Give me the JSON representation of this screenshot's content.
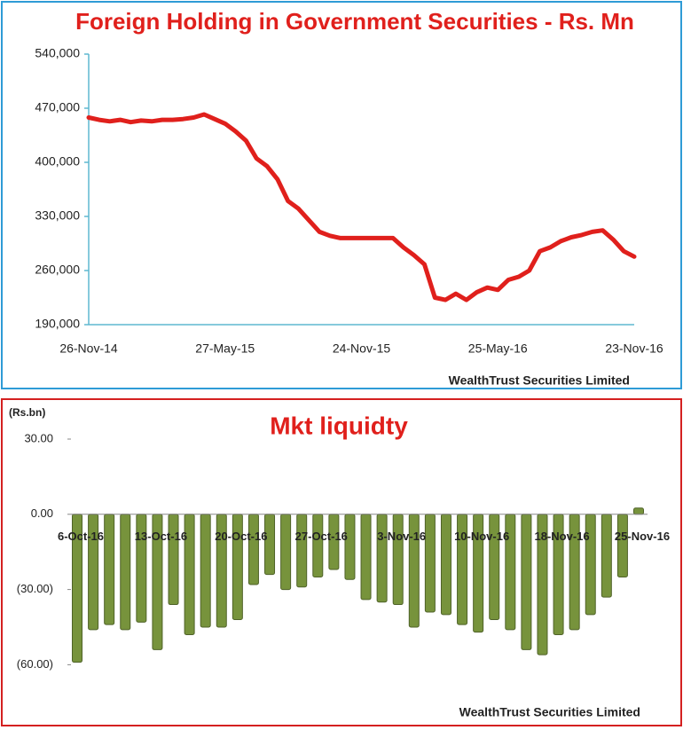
{
  "chart_data": [
    {
      "type": "line",
      "title": "Foreign Holding in Government Securities - Rs. Mn",
      "source": "WealthTrust Securities Limited",
      "categories": [
        "26-Nov-14",
        null,
        null,
        null,
        null,
        null,
        null,
        null,
        null,
        null,
        null,
        null,
        null,
        "27-May-15",
        null,
        null,
        null,
        null,
        null,
        null,
        null,
        null,
        null,
        null,
        null,
        null,
        "24-Nov-15",
        null,
        null,
        null,
        null,
        null,
        null,
        null,
        null,
        null,
        null,
        null,
        null,
        "25-May-16",
        null,
        null,
        null,
        null,
        null,
        null,
        null,
        null,
        null,
        null,
        null,
        null,
        "23-Nov-16"
      ],
      "series": [
        {
          "name": "Foreign Holding",
          "color": "#e0201c",
          "values": [
            458000,
            455000,
            453000,
            455000,
            452000,
            454000,
            453000,
            455000,
            455000,
            456000,
            458000,
            462000,
            456000,
            450000,
            440000,
            428000,
            405000,
            395000,
            378000,
            350000,
            340000,
            325000,
            310000,
            305000,
            302000,
            302000,
            302000,
            302000,
            302000,
            302000,
            290000,
            280000,
            268000,
            225000,
            222000,
            230000,
            222000,
            232000,
            238000,
            235000,
            248000,
            252000,
            260000,
            285000,
            290000,
            298000,
            303000,
            306000,
            310000,
            312000,
            300000,
            285000,
            278000
          ]
        }
      ],
      "ylim": [
        190000,
        540000
      ],
      "yticks": [
        {
          "value": 190000,
          "label": "190,000"
        },
        {
          "value": 260000,
          "label": "260,000"
        },
        {
          "value": 330000,
          "label": "330,000"
        },
        {
          "value": 400000,
          "label": "400,000"
        },
        {
          "value": 470000,
          "label": "470,000"
        },
        {
          "value": 540000,
          "label": "540,000"
        }
      ]
    },
    {
      "type": "bar",
      "title": "Mkt liquidty",
      "y_label": "(Rs.bn)",
      "source": "WealthTrust Securities Limited",
      "categories": [
        "6-Oct-16",
        null,
        null,
        null,
        null,
        "13-Oct-16",
        null,
        null,
        null,
        null,
        "20-Oct-16",
        null,
        null,
        null,
        null,
        "27-Oct-16",
        null,
        null,
        null,
        null,
        "3-Nov-16",
        null,
        null,
        null,
        null,
        "10-Nov-16",
        null,
        null,
        null,
        null,
        "18-Nov-16",
        null,
        null,
        null,
        null,
        "25-Nov-16"
      ],
      "series": [
        {
          "name": "Mkt liquidity",
          "color": "#77933c",
          "values": [
            -59,
            -46,
            -44,
            -46,
            -43,
            -54,
            -36,
            -48,
            -45,
            -45,
            -42,
            -28,
            -24,
            -30,
            -29,
            -25,
            -22,
            -26,
            -34,
            -35,
            -36,
            -45,
            -39,
            -40,
            -44,
            -47,
            -42,
            -46,
            -54,
            -56,
            -48,
            -46,
            -40,
            -33,
            -25,
            2.5
          ]
        }
      ],
      "ylim": [
        -68,
        30
      ],
      "yticks": [
        {
          "value": -60,
          "label": "(60.00)"
        },
        {
          "value": -30,
          "label": "(30.00)"
        },
        {
          "value": 0,
          "label": "0.00"
        },
        {
          "value": 30,
          "label": "30.00"
        }
      ]
    }
  ]
}
